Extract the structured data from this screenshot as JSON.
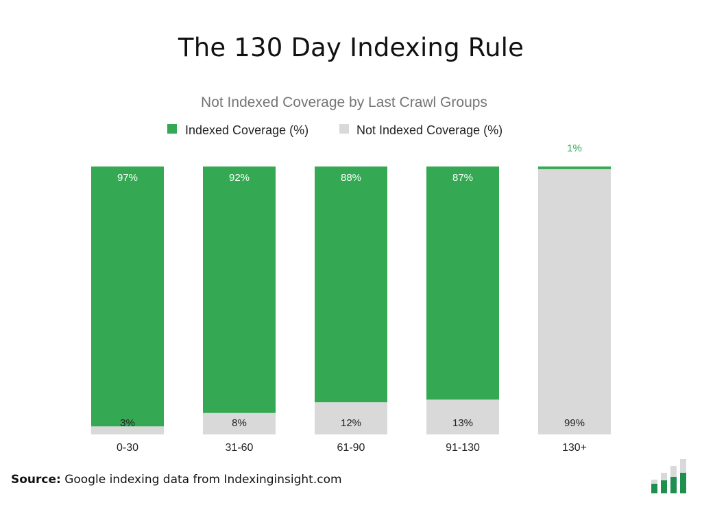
{
  "page": {
    "title": "The 130 Day Indexing Rule",
    "source_label": "Source:",
    "source_text": " Google indexing data from Indexinginsight.com"
  },
  "chart_data": {
    "type": "bar",
    "stacked": true,
    "title": "Not Indexed Coverage by Last Crawl Groups",
    "xlabel": "",
    "ylabel": "",
    "ylim": [
      0,
      100
    ],
    "grid": false,
    "legend_position": "top",
    "categories": [
      "0-30",
      "31-60",
      "61-90",
      "91-130",
      "130+"
    ],
    "series": [
      {
        "name": "Not Indexed Coverage (%)",
        "values": [
          3,
          8,
          12,
          13,
          99
        ],
        "labels": [
          "3%",
          "8%",
          "12%",
          "13%",
          "99%"
        ],
        "color": "#d9d9d9"
      },
      {
        "name": "Indexed Coverage (%)",
        "values": [
          97,
          92,
          88,
          87,
          1
        ],
        "labels": [
          "97%",
          "92%",
          "88%",
          "87%",
          "1%"
        ],
        "color": "#34a853"
      }
    ]
  },
  "colors": {
    "indexed": "#34a853",
    "not_indexed": "#d9d9d9",
    "title": "#111111",
    "subtitle": "#757575"
  },
  "logo": {
    "icon": "bar-chart-logo-icon"
  }
}
